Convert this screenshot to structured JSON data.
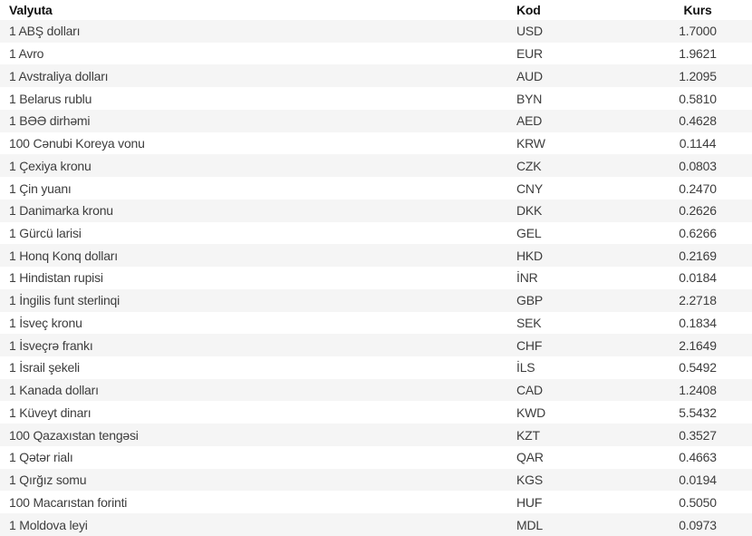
{
  "table": {
    "columns": [
      {
        "key": "currency",
        "label": "Valyuta"
      },
      {
        "key": "code",
        "label": "Kod"
      },
      {
        "key": "rate",
        "label": "Kurs"
      }
    ],
    "rows": [
      {
        "currency": "1 ABŞ dolları",
        "code": "USD",
        "rate": "1.7000"
      },
      {
        "currency": "1 Avro",
        "code": "EUR",
        "rate": "1.9621"
      },
      {
        "currency": "1 Avstraliya dolları",
        "code": "AUD",
        "rate": "1.2095"
      },
      {
        "currency": "1 Belarus rublu",
        "code": "BYN",
        "rate": "0.5810"
      },
      {
        "currency": "1 BƏƏ dirhəmi",
        "code": "AED",
        "rate": "0.4628"
      },
      {
        "currency": "100 Cənubi Koreya vonu",
        "code": "KRW",
        "rate": "0.1144"
      },
      {
        "currency": "1 Çexiya kronu",
        "code": "CZK",
        "rate": "0.0803"
      },
      {
        "currency": "1 Çin yuanı",
        "code": "CNY",
        "rate": "0.2470"
      },
      {
        "currency": "1 Danimarka kronu",
        "code": "DKK",
        "rate": "0.2626"
      },
      {
        "currency": "1 Gürcü larisi",
        "code": "GEL",
        "rate": "0.6266"
      },
      {
        "currency": "1 Honq Konq dolları",
        "code": "HKD",
        "rate": "0.2169"
      },
      {
        "currency": "1 Hindistan rupisi",
        "code": "İNR",
        "rate": "0.0184"
      },
      {
        "currency": "1 İngilis funt sterlinqi",
        "code": "GBP",
        "rate": "2.2718"
      },
      {
        "currency": "1 İsveç kronu",
        "code": "SEK",
        "rate": "0.1834"
      },
      {
        "currency": "1 İsveçrə frankı",
        "code": "CHF",
        "rate": "2.1649"
      },
      {
        "currency": "1 İsrail şekeli",
        "code": "İLS",
        "rate": "0.5492"
      },
      {
        "currency": "1 Kanada dolları",
        "code": "CAD",
        "rate": "1.2408"
      },
      {
        "currency": "1 Küveyt dinarı",
        "code": "KWD",
        "rate": "5.5432"
      },
      {
        "currency": "100 Qazaxıstan tengəsi",
        "code": "KZT",
        "rate": "0.3527"
      },
      {
        "currency": "1 Qətər rialı",
        "code": "QAR",
        "rate": "0.4663"
      },
      {
        "currency": "1 Qırğız somu",
        "code": "KGS",
        "rate": "0.0194"
      },
      {
        "currency": "100 Macarıstan forinti",
        "code": "HUF",
        "rate": "0.5050"
      },
      {
        "currency": "1 Moldova leyi",
        "code": "MDL",
        "rate": "0.0973"
      }
    ]
  },
  "colors": {
    "alt_row_bg": "#f5f5f5",
    "header_text": "#111111",
    "body_text": "#3d3d3d"
  }
}
